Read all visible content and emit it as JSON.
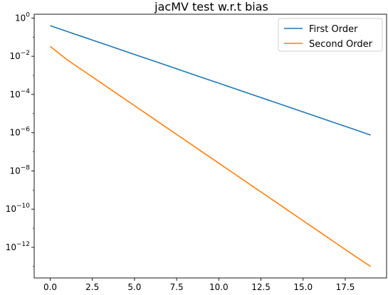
{
  "chart_data": {
    "type": "line",
    "title": "jacMV test w.r.t bias",
    "xlabel": "",
    "ylabel": "",
    "yscale": "log",
    "xlim": [
      -0.95,
      19.95
    ],
    "ylim_log10": [
      -13.6,
      0.2
    ],
    "x_ticks": [
      0,
      2.5,
      5,
      7.5,
      10,
      12.5,
      15,
      17.5
    ],
    "x_tick_labels": [
      "0.0",
      "2.5",
      "5.0",
      "7.5",
      "10.0",
      "12.5",
      "15.0",
      "17.5"
    ],
    "y_tick_exponents": [
      0,
      -2,
      -4,
      -6,
      -8,
      -10,
      -12
    ],
    "y_tick_base": "10",
    "legend_position": "upper right",
    "grid": false,
    "series": [
      {
        "name": "First Order",
        "color": "#1f77b4",
        "x": [
          0,
          1,
          2,
          3,
          4,
          5,
          6,
          7,
          8,
          9,
          10,
          11,
          12,
          13,
          14,
          15,
          16,
          17,
          18,
          19
        ],
        "y": [
          0.4,
          0.198,
          0.0996,
          0.0498,
          0.0249,
          0.01245,
          0.00623,
          0.00311,
          0.00156,
          0.000778,
          0.000389,
          0.000195,
          9.73e-05,
          4.87e-05,
          2.43e-05,
          1.22e-05,
          6.08e-06,
          3.04e-06,
          1.52e-06,
          7.5e-07
        ]
      },
      {
        "name": "Second Order",
        "color": "#ff7f0e",
        "x": [
          0,
          1,
          2,
          3,
          4,
          5,
          6,
          7,
          8,
          9,
          10,
          11,
          12,
          13,
          14,
          15,
          16,
          17,
          18,
          19
        ],
        "y": [
          0.033,
          0.0066,
          0.00166,
          0.000415,
          0.000104,
          2.6e-05,
          6.5e-06,
          1.62e-06,
          4.06e-07,
          1.01e-07,
          2.54e-08,
          6.35e-09,
          1.59e-09,
          3.97e-10,
          9.92e-11,
          2.48e-11,
          6.2e-12,
          1.55e-12,
          3.88e-13,
          1e-13
        ]
      }
    ]
  }
}
